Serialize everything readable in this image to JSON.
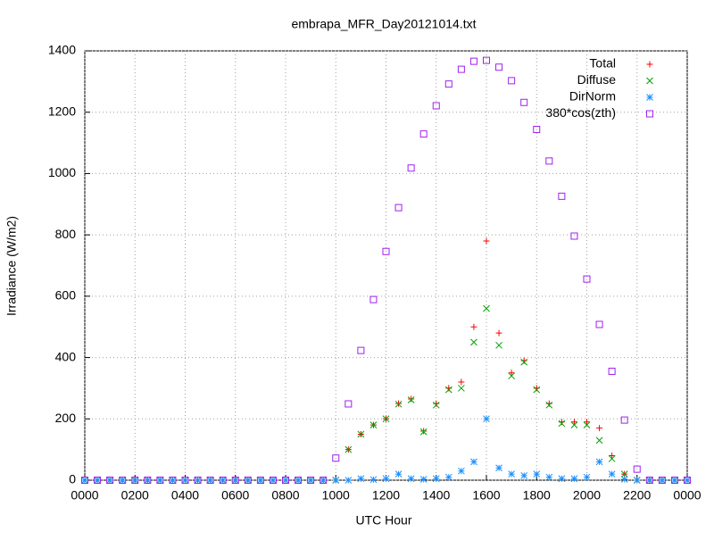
{
  "chart_data": {
    "type": "scatter",
    "title": "embrapa_MFR_Day20121014.txt",
    "xlabel": "UTC Hour",
    "ylabel": "Irradiance (W/m2)",
    "x": [
      0,
      0.5,
      1,
      1.5,
      2,
      2.5,
      3,
      3.5,
      4,
      4.5,
      5,
      5.5,
      6,
      6.5,
      7,
      7.5,
      8,
      8.5,
      9,
      9.5,
      10,
      10.5,
      11,
      11.5,
      12,
      12.5,
      13,
      13.5,
      14,
      14.5,
      15,
      15.5,
      16,
      16.5,
      17,
      17.5,
      18,
      18.5,
      19,
      19.5,
      20,
      20.5,
      21,
      21.5,
      22,
      22.5,
      23,
      23.5,
      24
    ],
    "series": [
      {
        "name": "Total",
        "color": "#ff0000",
        "marker": "plus",
        "values": [
          0,
          0,
          0,
          0,
          0,
          0,
          0,
          0,
          0,
          0,
          0,
          0,
          0,
          0,
          0,
          0,
          0,
          0,
          0,
          0,
          0,
          100,
          150,
          180,
          200,
          250,
          265,
          160,
          250,
          300,
          320,
          500,
          780,
          480,
          350,
          390,
          300,
          250,
          190,
          190,
          190,
          170,
          80,
          20,
          0,
          0,
          0,
          0,
          0
        ]
      },
      {
        "name": "Diffuse",
        "color": "#00a000",
        "marker": "cross",
        "values": [
          0,
          0,
          0,
          0,
          0,
          0,
          0,
          0,
          0,
          0,
          0,
          0,
          0,
          0,
          0,
          0,
          0,
          0,
          0,
          0,
          0,
          100,
          150,
          180,
          200,
          248,
          262,
          158,
          245,
          295,
          300,
          450,
          560,
          440,
          340,
          385,
          295,
          245,
          185,
          180,
          180,
          130,
          70,
          20,
          0,
          0,
          0,
          0,
          0
        ]
      },
      {
        "name": "DirNorm",
        "color": "#1e90ff",
        "marker": "star",
        "values": [
          0,
          0,
          0,
          0,
          0,
          0,
          0,
          0,
          0,
          0,
          0,
          0,
          0,
          0,
          0,
          0,
          0,
          0,
          0,
          0,
          0,
          0,
          5,
          2,
          5,
          20,
          5,
          3,
          5,
          10,
          30,
          60,
          200,
          40,
          20,
          15,
          20,
          10,
          5,
          5,
          10,
          60,
          20,
          3,
          0,
          0,
          0,
          0,
          0
        ]
      },
      {
        "name": "380*cos(zth)",
        "color": "#a020f0",
        "marker": "square",
        "values": [
          0,
          0,
          0,
          0,
          0,
          0,
          0,
          0,
          0,
          0,
          0,
          0,
          0,
          0,
          0,
          0,
          0,
          0,
          0,
          0,
          72,
          249,
          423,
          589,
          746,
          889,
          1018,
          1129,
          1221,
          1292,
          1340,
          1366,
          1369,
          1347,
          1303,
          1232,
          1144,
          1041,
          926,
          796,
          656,
          508,
          355,
          196,
          36,
          0,
          0,
          0,
          0
        ]
      }
    ],
    "xlim": [
      0,
      24
    ],
    "xticks": [
      {
        "value": 0,
        "label": "0000"
      },
      {
        "value": 2,
        "label": "0200"
      },
      {
        "value": 4,
        "label": "0400"
      },
      {
        "value": 6,
        "label": "0600"
      },
      {
        "value": 8,
        "label": "0800"
      },
      {
        "value": 10,
        "label": "1000"
      },
      {
        "value": 12,
        "label": "1200"
      },
      {
        "value": 14,
        "label": "1400"
      },
      {
        "value": 16,
        "label": "1600"
      },
      {
        "value": 18,
        "label": "1800"
      },
      {
        "value": 20,
        "label": "2000"
      },
      {
        "value": 22,
        "label": "2200"
      },
      {
        "value": 24,
        "label": "0000"
      }
    ],
    "ylim": [
      0,
      1400
    ],
    "yticks": [
      0,
      200,
      400,
      600,
      800,
      1000,
      1200,
      1400
    ],
    "grid": true,
    "legend": "top-right"
  }
}
